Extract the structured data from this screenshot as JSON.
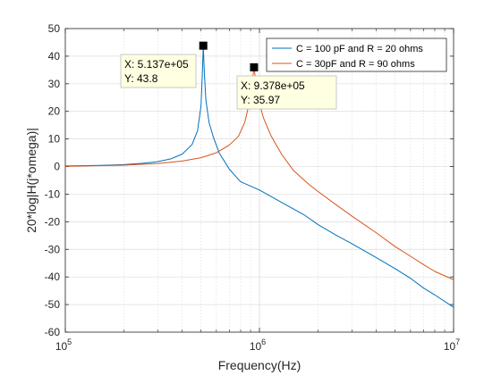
{
  "chart_data": {
    "type": "line",
    "xscale": "log",
    "xlim": [
      100000,
      10000000
    ],
    "ylim": [
      -60,
      50
    ],
    "grid": true,
    "minor_grid": true,
    "xlabel": "Frequency(Hz)",
    "ylabel": "20*log|H(j*omega)|",
    "x_ticks": [
      {
        "base": "10",
        "exp": "5"
      },
      {
        "base": "10",
        "exp": "6"
      },
      {
        "base": "10",
        "exp": "7"
      }
    ],
    "y_ticks": [
      50,
      40,
      30,
      20,
      10,
      0,
      -10,
      -20,
      -30,
      -40,
      -50,
      -60
    ],
    "legend_position": "top-right",
    "series": [
      {
        "name": "C = 100 pF and R = 20 ohms",
        "color": "#0072BD",
        "x": [
          100000,
          150000,
          200000,
          250000,
          300000,
          350000,
          400000,
          450000,
          480000,
          500000,
          507000,
          513700,
          520000,
          530000,
          550000,
          580000,
          620000,
          700000,
          800000,
          1000000,
          1300000,
          1700000,
          2000000,
          2500000,
          3000000,
          4000000,
          5000000,
          6000000,
          7000000,
          8000000,
          10000000
        ],
        "y": [
          0.2,
          0.4,
          0.7,
          1.2,
          1.8,
          2.8,
          4.5,
          8.0,
          13.0,
          22.0,
          32.0,
          43.8,
          34.0,
          24.0,
          16.0,
          10.5,
          5.0,
          -1.0,
          -5.5,
          -8.5,
          -13.0,
          -17.5,
          -21.0,
          -25.0,
          -28.0,
          -33.0,
          -37.0,
          -40.5,
          -44.0,
          -46.5,
          -51.0
        ]
      },
      {
        "name": "C = 30pF and R = 90 ohms",
        "color": "#D95319",
        "x": [
          100000,
          200000,
          300000,
          400000,
          500000,
          600000,
          700000,
          780000,
          840000,
          880000,
          910000,
          937800,
          960000,
          990000,
          1050000,
          1150000,
          1300000,
          1500000,
          1800000,
          2000000,
          2500000,
          3000000,
          4000000,
          5000000,
          6000000,
          7000000,
          8000000,
          10000000
        ],
        "y": [
          0.1,
          0.5,
          1.1,
          2.0,
          3.2,
          5.0,
          7.8,
          11.0,
          16.0,
          22.0,
          28.5,
          35.97,
          30.0,
          24.0,
          17.5,
          11.0,
          4.5,
          -1.5,
          -6.5,
          -9.0,
          -14.0,
          -18.0,
          -24.0,
          -29.0,
          -32.5,
          -35.5,
          -38.0,
          -41.0
        ]
      }
    ],
    "datatips": [
      {
        "x": 513700,
        "y": 43.8,
        "x_text": "X: 5.137e+05",
        "y_text": "Y: 43.8"
      },
      {
        "x": 937800,
        "y": 35.97,
        "x_text": "X: 9.378e+05",
        "y_text": "Y: 35.97"
      }
    ]
  }
}
